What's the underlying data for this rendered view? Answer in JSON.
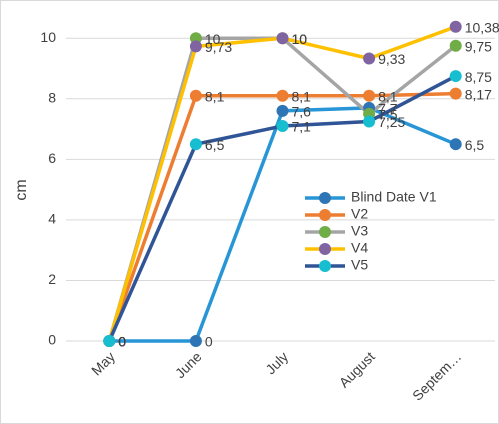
{
  "chart_data": {
    "type": "line",
    "y_label": "cm",
    "categories": [
      "May",
      "June",
      "July",
      "August",
      "Septem…"
    ],
    "ylim": [
      0,
      10.8
    ],
    "yticks": [
      0,
      2,
      4,
      6,
      8,
      10
    ],
    "grid": true,
    "legend": "right",
    "series": [
      {
        "name": "Blind Date  V1",
        "color": "#2795d6",
        "marker_color": "#2e75b6",
        "values": [
          0,
          0,
          7.6,
          7.7,
          6.5
        ],
        "value_labels": [
          "0",
          "0",
          "7,6",
          "7,7",
          "6,5"
        ]
      },
      {
        "name": "V2",
        "color": "#ed7d31",
        "marker_color": "#ed7d31",
        "values": [
          0,
          8.1,
          8.1,
          8.1,
          8.17
        ],
        "value_labels": [
          "0",
          "8,1",
          "8,1",
          "8,1",
          "8,17"
        ]
      },
      {
        "name": "V3",
        "color": "#a5a5a5",
        "marker_color": "#70ad47",
        "values": [
          0,
          10,
          10,
          7.5,
          9.75
        ],
        "value_labels": [
          "0",
          "10",
          "10",
          "7,5",
          "9,75"
        ]
      },
      {
        "name": "V4",
        "color": "#ffc000",
        "marker_color": "#8064a2",
        "values": [
          0,
          9.73,
          10,
          9.33,
          10.38
        ],
        "value_labels": [
          "0",
          "9,73",
          "10",
          "9,33",
          "10,38"
        ]
      },
      {
        "name": "V5",
        "color": "#2f5597",
        "marker_color": "#17becf",
        "values": [
          0,
          6.5,
          7.1,
          7.25,
          8.75
        ],
        "value_labels": [
          "0",
          "6,5",
          "7,1",
          "7,25",
          "8,75"
        ]
      }
    ]
  }
}
